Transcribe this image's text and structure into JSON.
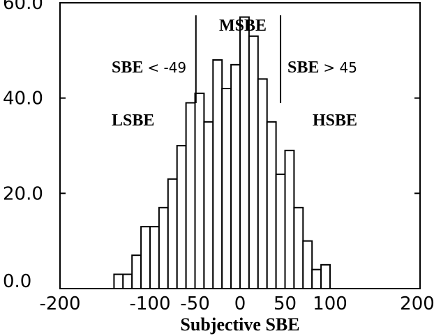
{
  "chart_data": {
    "type": "bar",
    "xlabel": "Subjective SBE",
    "ylabel": "",
    "xlim": [
      -200,
      200
    ],
    "ylim": [
      0,
      60
    ],
    "x_ticks": [
      -200,
      -100,
      -50,
      0,
      50,
      100,
      200
    ],
    "x_tick_labels": [
      "-200",
      "-100",
      "-50",
      "0",
      "50",
      "100",
      "200"
    ],
    "y_ticks": [
      0,
      20,
      40,
      60
    ],
    "y_tick_labels": [
      "0.0",
      "20.0",
      "40.0",
      "60.0"
    ],
    "bin_width": 10,
    "bins": [
      {
        "x": -135,
        "value": 3
      },
      {
        "x": -125,
        "value": 3
      },
      {
        "x": -115,
        "value": 7
      },
      {
        "x": -105,
        "value": 13
      },
      {
        "x": -95,
        "value": 13
      },
      {
        "x": -85,
        "value": 17
      },
      {
        "x": -75,
        "value": 23
      },
      {
        "x": -65,
        "value": 30
      },
      {
        "x": -55,
        "value": 39
      },
      {
        "x": -45,
        "value": 41
      },
      {
        "x": -35,
        "value": 35
      },
      {
        "x": -25,
        "value": 48
      },
      {
        "x": -15,
        "value": 42
      },
      {
        "x": -5,
        "value": 47
      },
      {
        "x": 5,
        "value": 57
      },
      {
        "x": 15,
        "value": 53
      },
      {
        "x": 25,
        "value": 44
      },
      {
        "x": 35,
        "value": 35
      },
      {
        "x": 45,
        "value": 24
      },
      {
        "x": 55,
        "value": 29
      },
      {
        "x": 65,
        "value": 17
      },
      {
        "x": 75,
        "value": 10
      },
      {
        "x": 85,
        "value": 4
      },
      {
        "x": 95,
        "value": 5
      }
    ],
    "thresholds": [
      -49,
      45
    ],
    "annotations": {
      "middle": "MSBE",
      "left_condition_prefix": "SBE",
      "left_condition_rest": "< -49",
      "left_name": "LSBE",
      "right_condition_prefix": "SBE",
      "right_condition_rest": "> 45",
      "right_name": "HSBE"
    }
  }
}
